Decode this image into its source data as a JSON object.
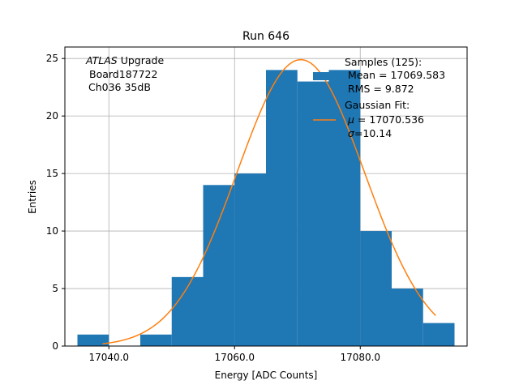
{
  "chart_data": {
    "type": "bar",
    "title": "Run 646",
    "xlabel": "Energy [ADC Counts]",
    "ylabel": "Entries",
    "xlim": [
      17033,
      17097
    ],
    "ylim": [
      0,
      26
    ],
    "xticks": [
      17040,
      17060,
      17080
    ],
    "xtick_labels": [
      "17040.0",
      "17060.0",
      "17080.0"
    ],
    "yticks": [
      0,
      5,
      10,
      15,
      20,
      25
    ],
    "ytick_labels": [
      "0",
      "5",
      "10",
      "15",
      "20",
      "25"
    ],
    "grid": true,
    "histogram": {
      "name": "Samples (125):",
      "color": "#1f77b4",
      "bin_edges": [
        17035,
        17040,
        17045,
        17050,
        17055,
        17060,
        17065,
        17070,
        17075,
        17080,
        17085,
        17090,
        17095
      ],
      "counts": [
        1,
        0,
        1,
        6,
        14,
        15,
        24,
        23,
        24,
        10,
        5,
        2
      ]
    },
    "fit": {
      "name": "Gaussian Fit:",
      "color": "#ff7f0e",
      "mu": 17070.536,
      "sigma": 10.14,
      "amplitude": 24.9,
      "x_range": [
        17039,
        17092
      ]
    },
    "annotation": {
      "italic": "ATLAS",
      "line1_rest": " Upgrade",
      "line2": "Board187722",
      "line3": "Ch036 35dB"
    },
    "legend": {
      "placement": "top-right",
      "samples_title": "Samples (125):",
      "samples_mean": "Mean = 17069.583",
      "samples_rms": "RMS = 9.872",
      "fit_title": "Gaussian Fit:",
      "fit_mu_symbol": "μ",
      "fit_mu_value": " = 17070.536",
      "fit_sigma_symbol": "σ",
      "fit_sigma_value": "=10.14"
    }
  }
}
